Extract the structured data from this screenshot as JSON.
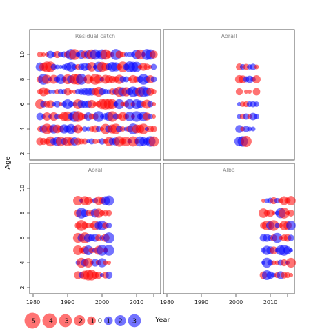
{
  "chart_data": {
    "type": "scatter",
    "ylabel": "Age",
    "xlabel": "Year",
    "xlim": [
      1979,
      2017
    ],
    "ylim": [
      1.5,
      11
    ],
    "x_ticks": [
      1980,
      1990,
      2000,
      2010
    ],
    "y_ticks": [
      2,
      4,
      6,
      8,
      10
    ],
    "colors": {
      "positive": "#0000ff",
      "negative": "#ff0000"
    },
    "panels": [
      {
        "name": "Residual catch",
        "years": [
          1982,
          2015
        ],
        "ages": [
          3,
          10
        ],
        "seed": 11
      },
      {
        "name": "Aorall",
        "years": [
          2001,
          2007
        ],
        "ages": [
          3,
          9
        ],
        "seed": 23,
        "points": [
          {
            "x": 2001,
            "y": 9,
            "v": -0.8
          },
          {
            "x": 2002,
            "y": 9,
            "v": 0.5
          },
          {
            "x": 2003,
            "y": 9,
            "v": -0.6
          },
          {
            "x": 2004,
            "y": 9,
            "v": 0.4
          },
          {
            "x": 2005,
            "y": 9,
            "v": 0.7
          },
          {
            "x": 2006,
            "y": 9,
            "v": -0.3
          },
          {
            "x": 2001,
            "y": 8,
            "v": -1.4
          },
          {
            "x": 2002,
            "y": 8,
            "v": -1.2
          },
          {
            "x": 2003,
            "y": 8,
            "v": 0.6
          },
          {
            "x": 2004,
            "y": 8,
            "v": 1.0
          },
          {
            "x": 2005,
            "y": 8,
            "v": 0.4
          },
          {
            "x": 2006,
            "y": 8,
            "v": -1.3
          },
          {
            "x": 2001,
            "y": 7,
            "v": -0.9
          },
          {
            "x": 2003,
            "y": 7,
            "v": -0.2
          },
          {
            "x": 2004,
            "y": 7,
            "v": -0.2
          },
          {
            "x": 2006,
            "y": 7,
            "v": -1.0
          },
          {
            "x": 2001,
            "y": 6,
            "v": 0.2
          },
          {
            "x": 2002,
            "y": 6,
            "v": -0.4
          },
          {
            "x": 2003,
            "y": 6,
            "v": -0.5
          },
          {
            "x": 2004,
            "y": 6,
            "v": 0.5
          },
          {
            "x": 2005,
            "y": 6,
            "v": 0.6
          },
          {
            "x": 2006,
            "y": 6,
            "v": 0.4
          },
          {
            "x": 2001,
            "y": 5,
            "v": 0.3
          },
          {
            "x": 2002,
            "y": 5,
            "v": -0.5
          },
          {
            "x": 2003,
            "y": 5,
            "v": 0.6
          },
          {
            "x": 2004,
            "y": 5,
            "v": -0.3
          },
          {
            "x": 2005,
            "y": 5,
            "v": 1.0
          },
          {
            "x": 2006,
            "y": 5,
            "v": 0.4
          },
          {
            "x": 2001,
            "y": 4,
            "v": 1.2
          },
          {
            "x": 2002,
            "y": 4,
            "v": -0.3
          },
          {
            "x": 2003,
            "y": 4,
            "v": 0.7
          },
          {
            "x": 2004,
            "y": 4,
            "v": 0.3
          },
          {
            "x": 2005,
            "y": 4,
            "v": 0.3
          },
          {
            "x": 2001,
            "y": 3,
            "v": 2.0
          },
          {
            "x": 2002,
            "y": 3,
            "v": 2.3
          },
          {
            "x": 2003,
            "y": 3,
            "v": -2.6
          }
        ]
      },
      {
        "name": "Aoral",
        "years": [
          1993,
          2002
        ],
        "ages": [
          3,
          9
        ],
        "seed": 37
      },
      {
        "name": "Alba",
        "years": [
          2008,
          2016
        ],
        "ages": [
          3,
          9
        ],
        "seed": 51
      }
    ],
    "legend": {
      "values": [
        -5,
        -4,
        -3,
        -2,
        -1,
        0,
        1,
        2,
        3
      ],
      "labels": [
        "-5",
        "-4",
        "-3",
        "-2",
        "-1",
        "0",
        "1",
        "2",
        "3"
      ]
    }
  }
}
